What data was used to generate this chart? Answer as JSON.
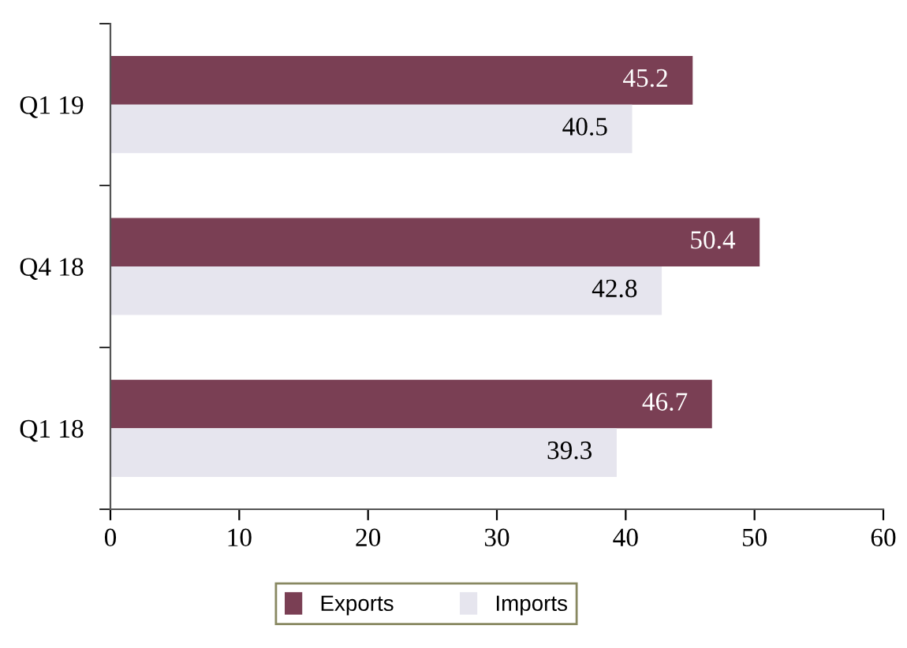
{
  "chart_data": {
    "type": "bar",
    "orientation": "horizontal",
    "categories": [
      "Q1 19",
      "Q4 18",
      "Q1 18"
    ],
    "series": [
      {
        "name": "Exports",
        "color": "#7a3f54",
        "values": [
          45.2,
          50.4,
          46.7
        ]
      },
      {
        "name": "Imports",
        "color": "#e6e5ee",
        "values": [
          40.5,
          42.8,
          39.3
        ]
      }
    ],
    "xlim": [
      0,
      60
    ],
    "xticks": [
      0,
      10,
      20,
      30,
      40,
      50,
      60
    ],
    "data_labels": true,
    "grid": false,
    "legend": "bottom"
  }
}
